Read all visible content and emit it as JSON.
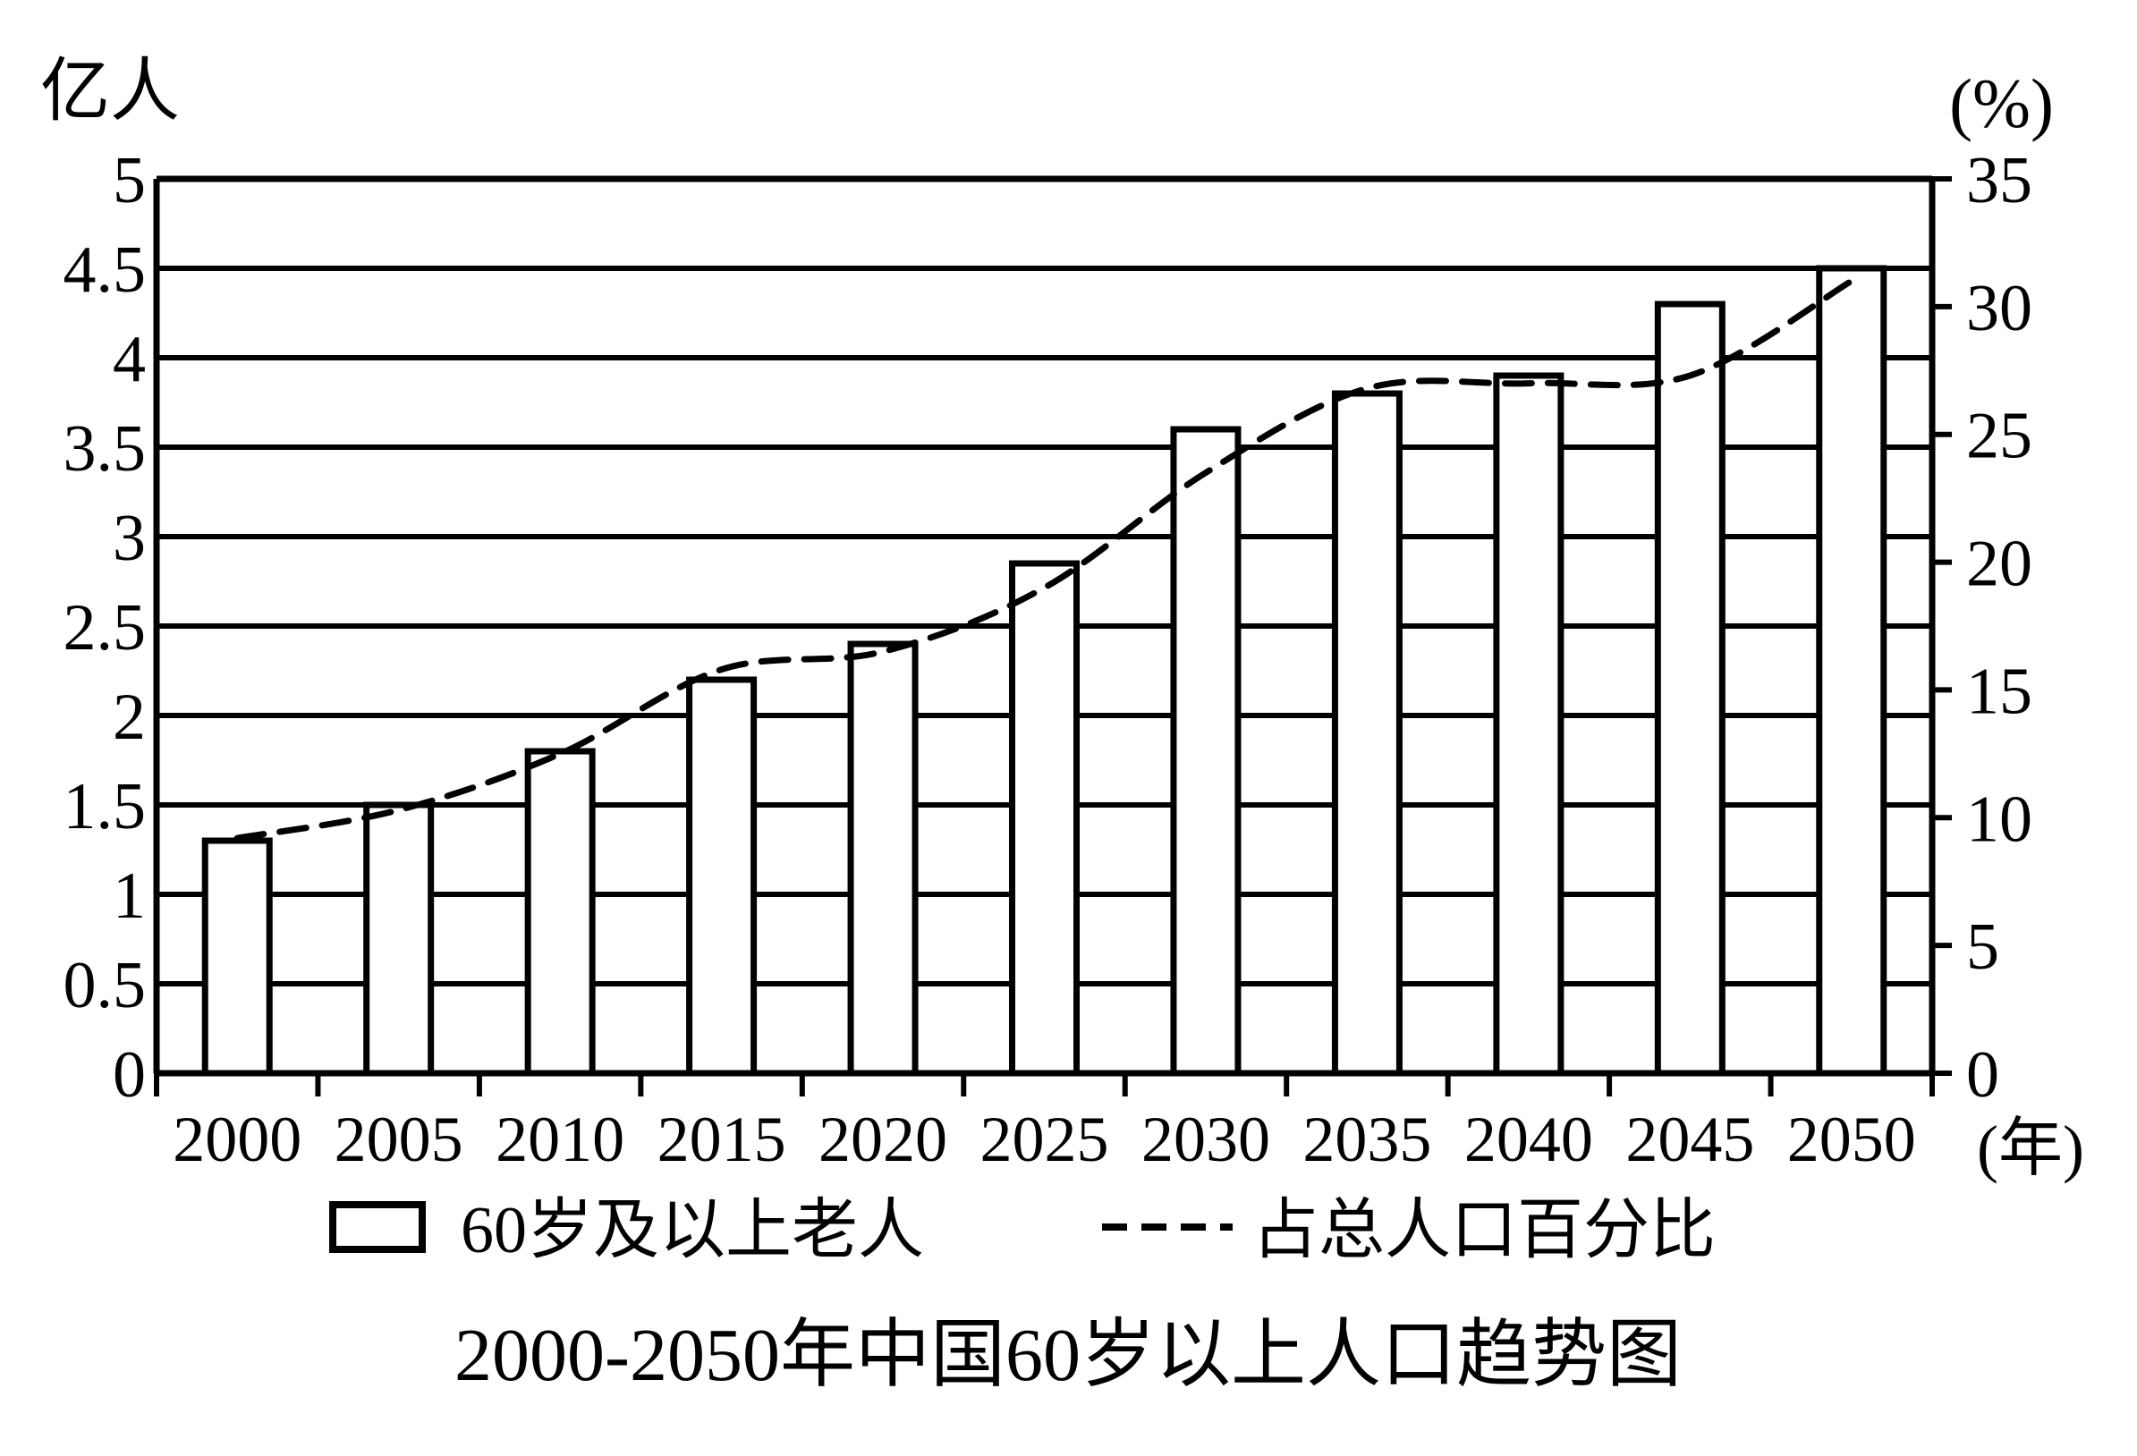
{
  "chart_data": {
    "type": "bar",
    "title": "2000-2050年中国60岁以上人口趋势图",
    "categories": [
      "2000",
      "2005",
      "2010",
      "2015",
      "2020",
      "2025",
      "2030",
      "2035",
      "2040",
      "2045",
      "2050"
    ],
    "x_unit": "(年)",
    "y_left": {
      "unit": "亿人",
      "ticks": [
        "0",
        "0.5",
        "1",
        "1.5",
        "2",
        "2.5",
        "3",
        "3.5",
        "4",
        "4.5",
        "5"
      ],
      "ylim": [
        0,
        5
      ]
    },
    "y_right": {
      "unit": "(%)",
      "ticks": [
        "0",
        "5",
        "10",
        "15",
        "20",
        "25",
        "30",
        "35"
      ],
      "ylim": [
        0,
        35
      ]
    },
    "series": [
      {
        "name": "60岁及以上老人",
        "type": "bar",
        "axis": "left",
        "values": [
          1.3,
          1.5,
          1.8,
          2.2,
          2.4,
          2.85,
          3.6,
          3.8,
          3.9,
          4.3,
          4.5
        ]
      },
      {
        "name": "占总人口百分比",
        "type": "line",
        "style": "dashed",
        "axis": "right",
        "values": [
          9.2,
          10.3,
          12.5,
          15.8,
          16.5,
          19.0,
          23.5,
          26.8,
          27.0,
          27.3,
          31.0
        ]
      }
    ],
    "grid": true,
    "legend_position": "bottom",
    "colors": {
      "line": "#000000",
      "bar_fill": "#ffffff",
      "bar_stroke": "#000000"
    }
  }
}
